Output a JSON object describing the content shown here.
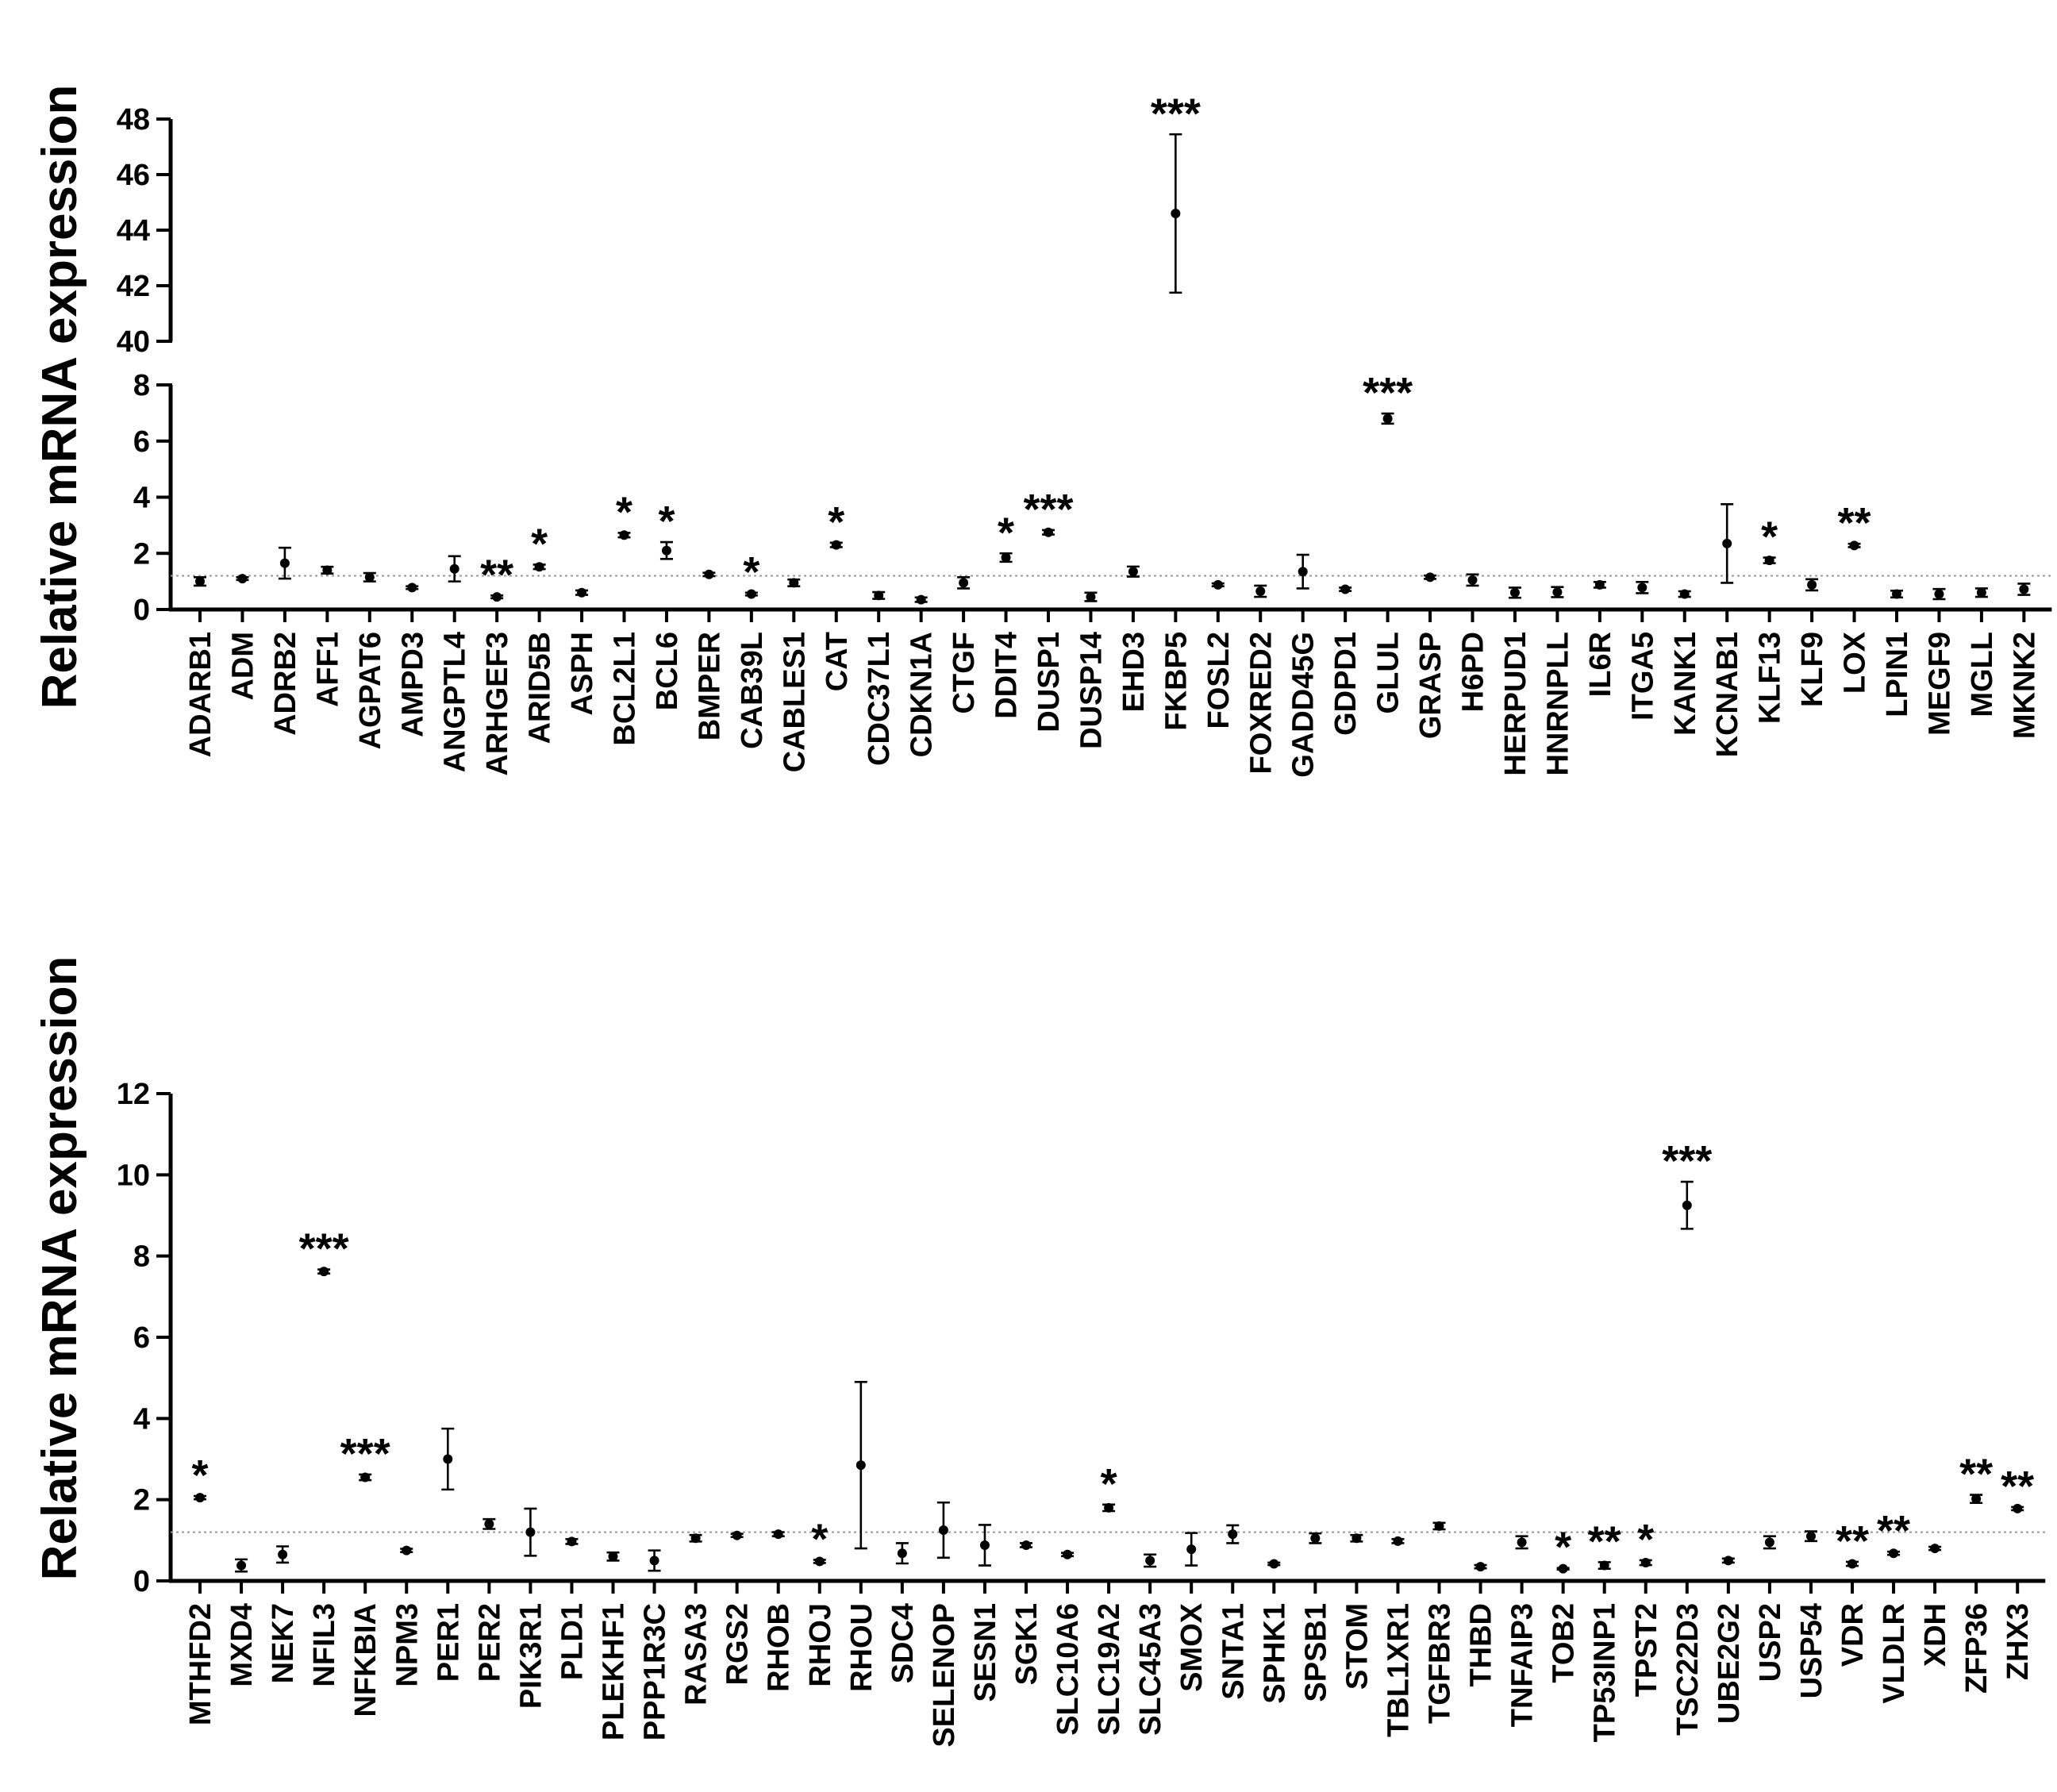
{
  "chart_data": [
    {
      "type": "scatter",
      "title": "",
      "ylabel": "Relative mRNA expression",
      "xlabel": "",
      "axis_break": true,
      "ylim_lower": [
        0,
        8
      ],
      "ylim_upper": [
        40,
        48
      ],
      "yticks_lower": [
        "0",
        "2",
        "4",
        "6",
        "8"
      ],
      "yticks_upper": [
        "40",
        "42",
        "44",
        "46",
        "48"
      ],
      "reference_line": 1.2,
      "categories": [
        "ADARB1",
        "ADM",
        "ADRB2",
        "AFF1",
        "AGPAT6",
        "AMPD3",
        "ANGPTL4",
        "ARHGEF3",
        "ARID5B",
        "ASPH",
        "BCL2L1",
        "BCL6",
        "BMPER",
        "CAB39L",
        "CABLES1",
        "CAT",
        "CDC37L1",
        "CDKN1A",
        "CTGF",
        "DDIT4",
        "DUSP1",
        "DUSP14",
        "EHD3",
        "FKBP5",
        "FOSL2",
        "FOXRED2",
        "GADD45G",
        "GDPD1",
        "GLUL",
        "GRASP",
        "H6PD",
        "HERPUD1",
        "HNRNPLL",
        "IL6R",
        "ITGA5",
        "KANK1",
        "KCNAB1",
        "KLF13",
        "KLF9",
        "LOX",
        "LPIN1",
        "MEGF9",
        "MGLL",
        "MKNK2"
      ],
      "values": [
        1.0,
        1.1,
        1.65,
        1.4,
        1.15,
        0.78,
        1.45,
        0.45,
        1.52,
        0.6,
        2.65,
        2.1,
        1.25,
        0.55,
        0.95,
        2.3,
        0.5,
        0.35,
        0.95,
        1.85,
        2.75,
        0.45,
        1.35,
        44.6,
        0.88,
        0.65,
        1.35,
        0.72,
        6.8,
        1.15,
        1.05,
        0.6,
        0.62,
        0.88,
        0.78,
        0.55,
        2.35,
        1.75,
        0.88,
        2.28,
        0.55,
        0.55,
        0.6,
        0.72
      ],
      "errors": [
        0.15,
        0.05,
        0.55,
        0.12,
        0.15,
        0.05,
        0.45,
        0.05,
        0.08,
        0.08,
        0.08,
        0.3,
        0.06,
        0.05,
        0.12,
        0.08,
        0.12,
        0.08,
        0.2,
        0.15,
        0.08,
        0.15,
        0.18,
        2.85,
        0.05,
        0.2,
        0.6,
        0.06,
        0.18,
        0.06,
        0.2,
        0.18,
        0.18,
        0.1,
        0.2,
        0.1,
        1.4,
        0.1,
        0.2,
        0.06,
        0.12,
        0.18,
        0.15,
        0.2
      ],
      "significance": [
        "",
        "",
        "",
        "",
        "",
        "",
        "",
        "**",
        "*",
        "",
        "*",
        "*",
        "",
        "*",
        "",
        "*",
        "",
        "",
        "",
        "*",
        "***",
        "",
        "",
        "***",
        "",
        "",
        "",
        "",
        "***",
        "",
        "",
        "",
        "",
        "",
        "",
        "",
        "",
        "*",
        "",
        "**",
        "",
        "",
        "",
        ""
      ]
    },
    {
      "type": "scatter",
      "title": "",
      "ylabel": "Relative mRNA expression",
      "xlabel": "",
      "ylim": [
        0,
        12
      ],
      "yticks": [
        "0",
        "2",
        "4",
        "6",
        "8",
        "10",
        "12"
      ],
      "reference_line": 1.2,
      "categories": [
        "MTHFD2",
        "MXD4",
        "NEK7",
        "NFIL3",
        "NFKBIA",
        "NPM3",
        "PER1",
        "PER2",
        "PIK3R1",
        "PLD1",
        "PLEKHF1",
        "PPP1R3C",
        "RASA3",
        "RGS2",
        "RHOB",
        "RHOJ",
        "RHOU",
        "SDC4",
        "SELENOP",
        "SESN1",
        "SGK1",
        "SLC10A6",
        "SLC19A2",
        "SLC45A3",
        "SMOX",
        "SNTA1",
        "SPHK1",
        "SPSB1",
        "STOM",
        "TBL1XR1",
        "TGFBR3",
        "THBD",
        "TNFAIP3",
        "TOB2",
        "TP53INP1",
        "TPST2",
        "TSC22D3",
        "UBE2G2",
        "USP2",
        "USP54",
        "VDR",
        "VLDLR",
        "XDH",
        "ZFP36",
        "ZHX3"
      ],
      "values": [
        2.05,
        0.38,
        0.65,
        7.62,
        2.55,
        0.75,
        3.0,
        1.4,
        1.2,
        0.97,
        0.6,
        0.5,
        1.05,
        1.12,
        1.15,
        0.48,
        2.85,
        0.68,
        1.25,
        0.88,
        0.88,
        0.65,
        1.8,
        0.5,
        0.78,
        1.15,
        0.42,
        1.05,
        1.05,
        0.98,
        1.35,
        0.35,
        0.95,
        0.3,
        0.38,
        0.45,
        9.25,
        0.5,
        0.95,
        1.1,
        0.42,
        0.68,
        0.8,
        2.02,
        1.78
      ],
      "errors": [
        0.04,
        0.15,
        0.2,
        0.05,
        0.07,
        0.04,
        0.75,
        0.12,
        0.58,
        0.06,
        0.1,
        0.25,
        0.08,
        0.04,
        0.05,
        0.04,
        2.05,
        0.25,
        0.68,
        0.5,
        0.05,
        0.04,
        0.08,
        0.15,
        0.4,
        0.22,
        0.03,
        0.12,
        0.08,
        0.05,
        0.08,
        0.04,
        0.15,
        0.02,
        0.08,
        0.06,
        0.58,
        0.05,
        0.15,
        0.12,
        0.05,
        0.04,
        0.04,
        0.1,
        0.04
      ],
      "significance": [
        "*",
        "",
        "",
        "***",
        "***",
        "",
        "",
        "",
        "",
        "",
        "",
        "",
        "",
        "",
        "",
        "*",
        "",
        "",
        "",
        "",
        "",
        "",
        "*",
        "",
        "",
        "",
        "",
        "",
        "",
        "",
        "",
        "",
        "",
        "*",
        "**",
        "*",
        "***",
        "",
        "",
        "",
        "**",
        "**",
        "",
        "**",
        "**"
      ]
    }
  ]
}
